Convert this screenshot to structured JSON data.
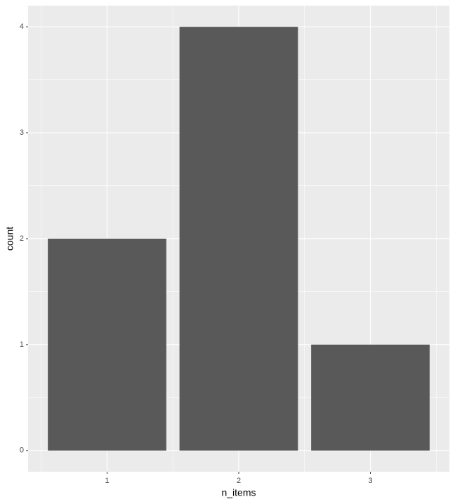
{
  "chart_data": {
    "type": "bar",
    "x_label": "n_items",
    "y_label": "count",
    "x": [
      1,
      2,
      3
    ],
    "values": [
      2,
      4,
      1
    ],
    "color": "#595959",
    "xlim": [
      0.4,
      3.6
    ],
    "xticks": [
      1,
      2,
      3
    ],
    "ylim": [
      -0.2,
      4.2
    ],
    "yticks": [
      0,
      1,
      2,
      3,
      4
    ],
    "grid": true
  }
}
